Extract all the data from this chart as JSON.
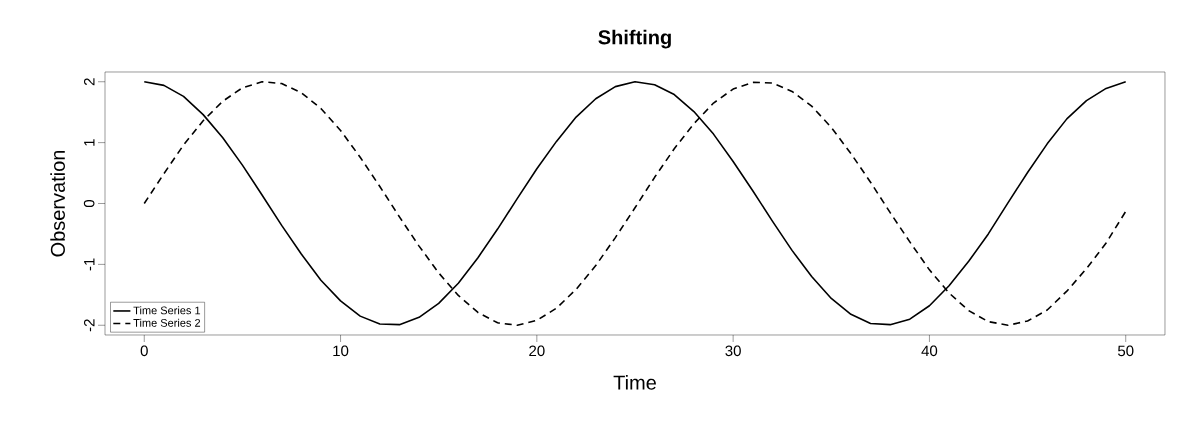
{
  "chart_data": {
    "type": "line",
    "title": "Shifting",
    "xlabel": "Time",
    "ylabel": "Observation",
    "x": [
      0,
      1,
      2,
      3,
      4,
      5,
      6,
      7,
      8,
      9,
      10,
      11,
      12,
      13,
      14,
      15,
      16,
      17,
      18,
      19,
      20,
      21,
      22,
      23,
      24,
      25,
      26,
      27,
      28,
      29,
      30,
      31,
      32,
      33,
      34,
      35,
      36,
      37,
      38,
      39,
      40,
      41,
      42,
      43,
      44,
      45,
      46,
      47,
      48,
      49,
      50
    ],
    "series": [
      {
        "name": "Time Series 1",
        "color": "#000000",
        "line_style": "solid",
        "values": [
          2.0,
          1.94,
          1.76,
          1.46,
          1.08,
          0.63,
          0.14,
          -0.36,
          -0.83,
          -1.26,
          -1.6,
          -1.85,
          -1.98,
          -1.99,
          -1.87,
          -1.64,
          -1.31,
          -0.89,
          -0.42,
          0.08,
          0.57,
          1.02,
          1.42,
          1.72,
          1.92,
          2.0,
          1.95,
          1.79,
          1.51,
          1.14,
          0.69,
          0.21,
          -0.29,
          -0.77,
          -1.2,
          -1.56,
          -1.82,
          -1.97,
          -1.99,
          -1.9,
          -1.68,
          -1.35,
          -0.95,
          -0.5,
          0.01,
          0.51,
          0.98,
          1.39,
          1.69,
          1.89,
          2.0
        ]
      },
      {
        "name": "Time Series 2",
        "color": "#000000",
        "line_style": "dashed",
        "values": [
          0.0,
          0.49,
          0.96,
          1.36,
          1.68,
          1.9,
          2.0,
          1.97,
          1.82,
          1.56,
          1.2,
          0.76,
          0.28,
          -0.22,
          -0.7,
          -1.14,
          -1.51,
          -1.79,
          -1.96,
          -2.0,
          -1.92,
          -1.72,
          -1.41,
          -1.02,
          -0.56,
          -0.07,
          0.43,
          0.9,
          1.31,
          1.65,
          1.88,
          1.99,
          1.98,
          1.84,
          1.6,
          1.25,
          0.82,
          0.35,
          -0.15,
          -0.63,
          -1.09,
          -1.47,
          -1.76,
          -1.94,
          -2.0,
          -1.93,
          -1.75,
          -1.44,
          -1.07,
          -0.65,
          -0.13
        ]
      }
    ],
    "xlim": [
      -2,
      52
    ],
    "ylim": [
      -2.16,
      2.16
    ],
    "xticks": [
      0,
      10,
      20,
      30,
      40,
      50
    ],
    "yticks": [
      -2,
      -1,
      0,
      1,
      2
    ],
    "grid": false,
    "legend": "bottom left",
    "marker": "none"
  }
}
